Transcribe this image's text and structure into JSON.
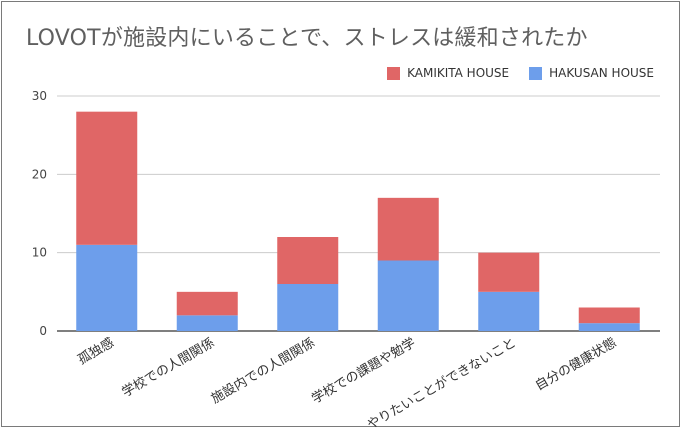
{
  "chart_data": {
    "type": "bar",
    "stacked": true,
    "title": "LOVOTが施設内にいることで、ストレスは緩和されたか",
    "categories": [
      "孤独感",
      "学校での人間関係",
      "施設内での人間関係",
      "学校での課題や勉学",
      "やりたいことができないこと",
      "自分の健康状態"
    ],
    "series": [
      {
        "name": "HAKUSAN HOUSE",
        "color": "#6d9eeb",
        "values": [
          11,
          2,
          6,
          9,
          5,
          1
        ]
      },
      {
        "name": "KAMIKITA HOUSE",
        "color": "#e06666",
        "values": [
          17,
          3,
          6,
          8,
          5,
          2
        ]
      }
    ],
    "legend_order": [
      "KAMIKITA HOUSE",
      "HAKUSAN HOUSE"
    ],
    "yticks": [
      "0",
      "10",
      "20",
      "30"
    ],
    "ylim": [
      0,
      30
    ],
    "grid": true,
    "legend_position": "top-right",
    "xlabel": "",
    "ylabel": ""
  }
}
